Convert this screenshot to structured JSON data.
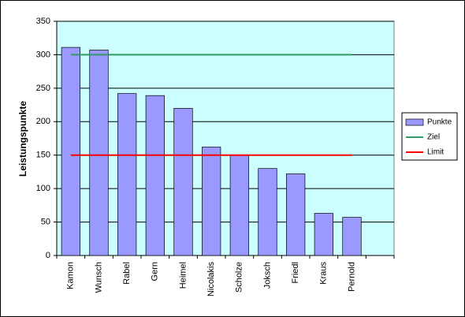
{
  "chart_data": {
    "type": "bar",
    "y_label": "Leistungspunkte",
    "categories": [
      "Kamon",
      "Wunsch",
      "Rabel",
      "Gern",
      "Heimel",
      "Nicolakis",
      "Scholze",
      "Joksch",
      "Friedl",
      "Kraus",
      "Pernold",
      null
    ],
    "series": [
      {
        "name": "Punkte",
        "type": "bar",
        "color": "#9999ff",
        "values": [
          311,
          307,
          242,
          239,
          220,
          162,
          150,
          130,
          122,
          63,
          57,
          null
        ]
      },
      {
        "name": "Ziel",
        "type": "line",
        "color": "#339966",
        "values": [
          300,
          300,
          300,
          300,
          300,
          300,
          300,
          300,
          300,
          300,
          300,
          null
        ]
      },
      {
        "name": "Limit",
        "type": "line",
        "color": "#ff0000",
        "values": [
          150,
          150,
          150,
          150,
          150,
          150,
          150,
          150,
          150,
          150,
          150,
          null
        ]
      }
    ],
    "ylim": [
      0,
      350
    ],
    "yticks": [
      0,
      50,
      100,
      150,
      200,
      250,
      300,
      350
    ],
    "grid": true,
    "plot_background": "#ccffff",
    "legend": "right"
  }
}
